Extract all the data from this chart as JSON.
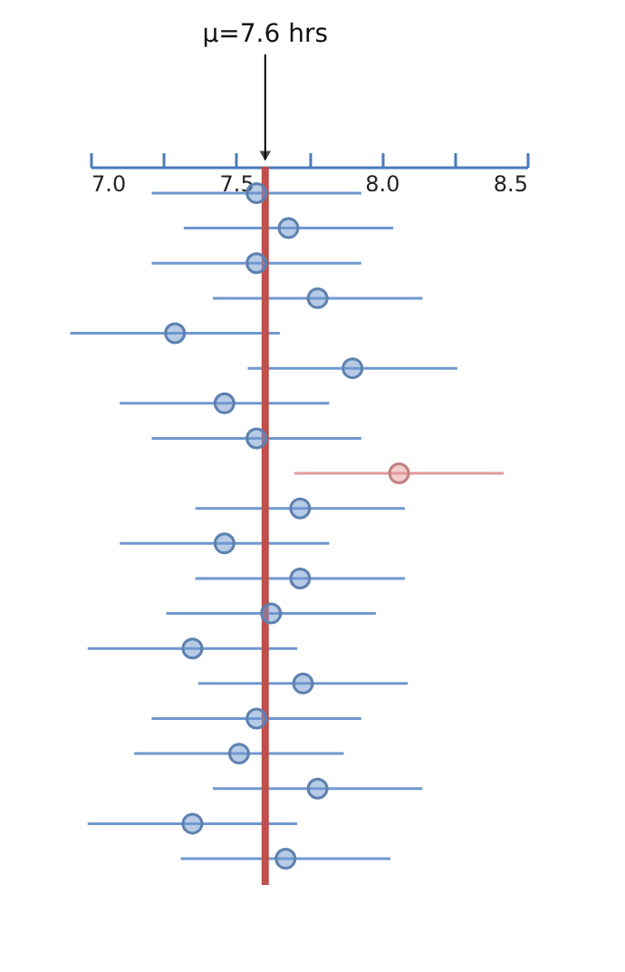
{
  "chart_data": {
    "type": "scatter",
    "orientation": "horizontal",
    "marker": "circle",
    "grid": false,
    "tick_labels": "x",
    "categories": [
      null,
      null,
      null,
      null,
      null,
      null,
      null,
      null,
      null,
      null,
      null,
      null,
      null,
      null,
      null,
      null,
      null,
      null,
      null,
      null
    ],
    "values": [
      7.57,
      7.68,
      7.57,
      7.78,
      7.29,
      7.9,
      7.46,
      7.57,
      8.06,
      7.72,
      7.46,
      7.72,
      7.62,
      7.35,
      7.73,
      7.57,
      7.51,
      7.78,
      7.35,
      7.67
    ],
    "errors": [
      0.36,
      0.36,
      0.36,
      0.36,
      0.36,
      0.36,
      0.36,
      0.36,
      0.36,
      0.36,
      0.36,
      0.36,
      0.36,
      0.36,
      0.36,
      0.36,
      0.36,
      0.36,
      0.36,
      0.36
    ],
    "colors": [
      "#6f98d0",
      "#6f98d0",
      "#6f98d0",
      "#6f98d0",
      "#6f98d0",
      "#6f98d0",
      "#6f98d0",
      "#6f98d0",
      "#e39a9a",
      "#6f98d0",
      "#6f98d0",
      "#6f98d0",
      "#6f98d0",
      "#6f98d0",
      "#6f98d0",
      "#6f98d0",
      "#6f98d0",
      "#6f98d0",
      "#6f98d0",
      "#6f98d0"
    ],
    "xlim": [
      7.0,
      8.5
    ],
    "xticks": [
      {
        "value": 7.0,
        "label": "7.0"
      },
      {
        "value": 7.25,
        "label": null
      },
      {
        "value": 7.5,
        "label": "7.5"
      },
      {
        "value": 7.75,
        "label": null
      },
      {
        "value": 8.0,
        "label": "8.0"
      },
      {
        "value": 8.25,
        "label": null
      },
      {
        "value": 8.5,
        "label": "8.5"
      }
    ],
    "ref_lines": [
      {
        "axis": "x",
        "value": 7.6,
        "label": "μ=7.6 hrs",
        "color": "#c0504d"
      }
    ]
  }
}
